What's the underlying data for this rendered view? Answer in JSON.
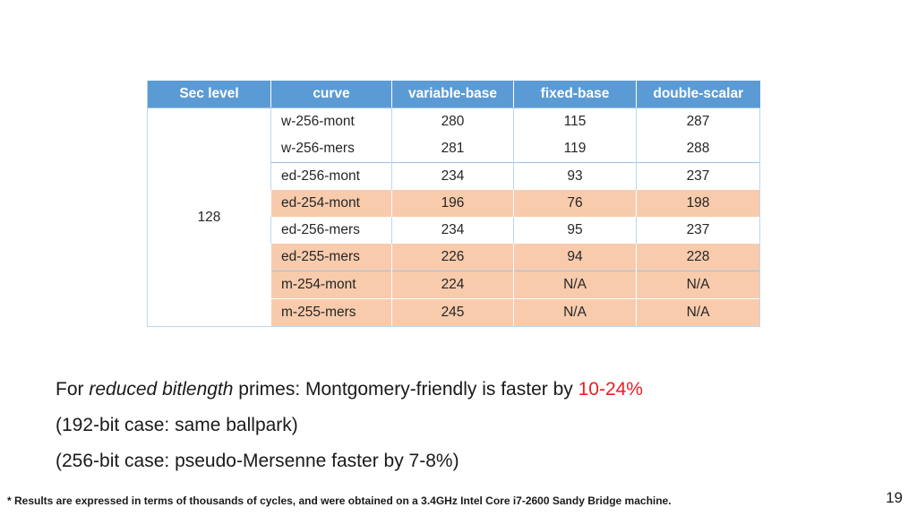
{
  "slide": {
    "page_number": "19",
    "footnote": "* Results are expressed in terms of thousands of cycles, and were obtained on a 3.4GHz Intel Core i7-2600 Sandy Bridge machine."
  },
  "table": {
    "columns": [
      "Sec level",
      "curve",
      "variable-base",
      "fixed-base",
      "double-scalar"
    ],
    "sec_level": "128",
    "rows": [
      {
        "curve": "w-256-mont",
        "variable_base": "280",
        "fixed_base": "115",
        "double_scalar": "287",
        "highlight": false,
        "group_start": false
      },
      {
        "curve": "w-256-mers",
        "variable_base": "281",
        "fixed_base": "119",
        "double_scalar": "288",
        "highlight": false,
        "group_start": false
      },
      {
        "curve": "ed-256-mont",
        "variable_base": "234",
        "fixed_base": "93",
        "double_scalar": "237",
        "highlight": false,
        "group_start": true
      },
      {
        "curve": "ed-254-mont",
        "variable_base": "196",
        "fixed_base": "76",
        "double_scalar": "198",
        "highlight": true,
        "group_start": false
      },
      {
        "curve": "ed-256-mers",
        "variable_base": "234",
        "fixed_base": "95",
        "double_scalar": "237",
        "highlight": false,
        "group_start": false
      },
      {
        "curve": "ed-255-mers",
        "variable_base": "226",
        "fixed_base": "94",
        "double_scalar": "228",
        "highlight": true,
        "group_start": false
      },
      {
        "curve": "m-254-mont",
        "variable_base": "224",
        "fixed_base": "N/A",
        "double_scalar": "N/A",
        "highlight": true,
        "group_start": true
      },
      {
        "curve": "m-255-mers",
        "variable_base": "245",
        "fixed_base": "N/A",
        "double_scalar": "N/A",
        "highlight": true,
        "group_start": false
      }
    ]
  },
  "notes": {
    "line1_prefix": "For ",
    "line1_italic": "reduced bitlength",
    "line1_mid": " primes: Montgomery-friendly is faster by ",
    "line1_red": "10-24%",
    "line2": "(192-bit case: same ballpark)",
    "line3": "(256-bit case: pseudo-Mersenne faster by 7-8%)"
  },
  "colors": {
    "header_bg": "#5B9BD5",
    "highlight_bg": "#F7CBAC",
    "border_light": "#BDD7EE",
    "border_group": "#9DC3E6",
    "red_text": "#ED1C24"
  }
}
